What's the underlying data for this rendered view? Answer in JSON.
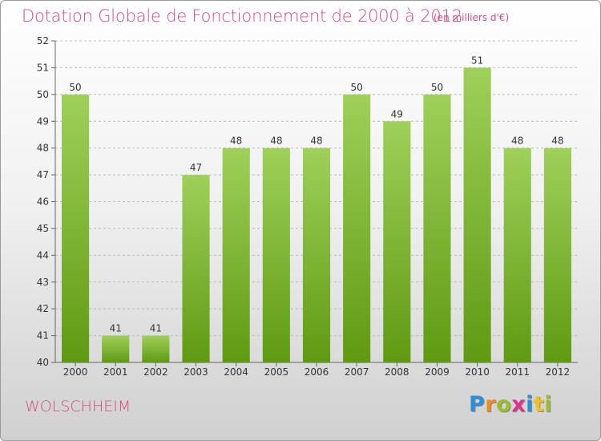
{
  "header": {
    "title": "Dotation Globale de Fonctionnement de 2000 à 2012",
    "unit": "(en milliers d'€)"
  },
  "footer": {
    "commune": "WOLSCHHEIM",
    "logo_letters": [
      "P",
      "r",
      "o",
      "x",
      "i",
      "t",
      "i"
    ],
    "logo_colors": [
      "#2f8fd6",
      "#f08a1c",
      "#9bbf2a",
      "#e0338b",
      "#2f8fd6",
      "#f0c21c",
      "#9bbf2a"
    ]
  },
  "colors": {
    "bar_top": "#9fd05a",
    "bar_bottom": "#5f9a12",
    "text_accent": "#d34d7d",
    "grid": "#bcbcbc"
  },
  "chart_data": {
    "type": "bar",
    "title": "Dotation Globale de Fonctionnement de 2000 à 2012",
    "categories": [
      "2000",
      "2001",
      "2002",
      "2003",
      "2004",
      "2005",
      "2006",
      "2007",
      "2008",
      "2009",
      "2010",
      "2011",
      "2012"
    ],
    "values": [
      50,
      41,
      41,
      47,
      48,
      48,
      48,
      50,
      49,
      50,
      51,
      48,
      48
    ],
    "ylim": [
      40,
      52
    ],
    "yticks": [
      40,
      41,
      42,
      43,
      44,
      45,
      46,
      47,
      48,
      49,
      50,
      51,
      52
    ],
    "grid": true,
    "xlabel": "",
    "ylabel": ""
  }
}
